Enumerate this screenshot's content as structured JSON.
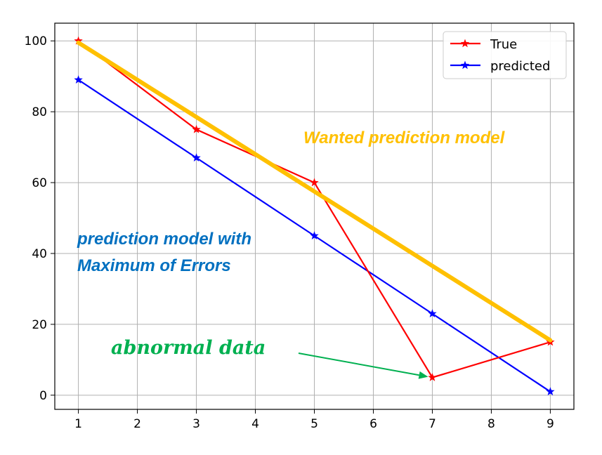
{
  "chart_data": {
    "type": "line",
    "xlim": [
      0.6,
      9.4
    ],
    "ylim": [
      -4,
      105
    ],
    "xticks": [
      1,
      2,
      3,
      4,
      5,
      6,
      7,
      8,
      9
    ],
    "yticks": [
      0,
      20,
      40,
      60,
      80,
      100
    ],
    "grid": true,
    "legend_position": "top-right",
    "series": [
      {
        "name": "True",
        "color": "#ff0000",
        "marker": "star",
        "x": [
          1,
          3,
          5,
          7,
          9
        ],
        "y": [
          100,
          75,
          60,
          5,
          15
        ]
      },
      {
        "name": "predicted",
        "color": "#0000ff",
        "marker": "star",
        "x": [
          1,
          3,
          5,
          7,
          9
        ],
        "y": [
          89,
          67,
          45,
          23,
          1
        ]
      }
    ],
    "overlay_line": {
      "color": "#ffc000",
      "x": [
        1,
        9
      ],
      "y": [
        99.5,
        15.5
      ]
    },
    "annotations": [
      {
        "text": "Wanted prediction model",
        "color": "#ffc000"
      },
      {
        "line1": "prediction model with",
        "line2": "Maximum of Errors",
        "color": "#0070c0"
      },
      {
        "text": "abnormal data",
        "color": "#00b050",
        "arrow_to": {
          "x": 7,
          "y": 5
        }
      }
    ]
  }
}
